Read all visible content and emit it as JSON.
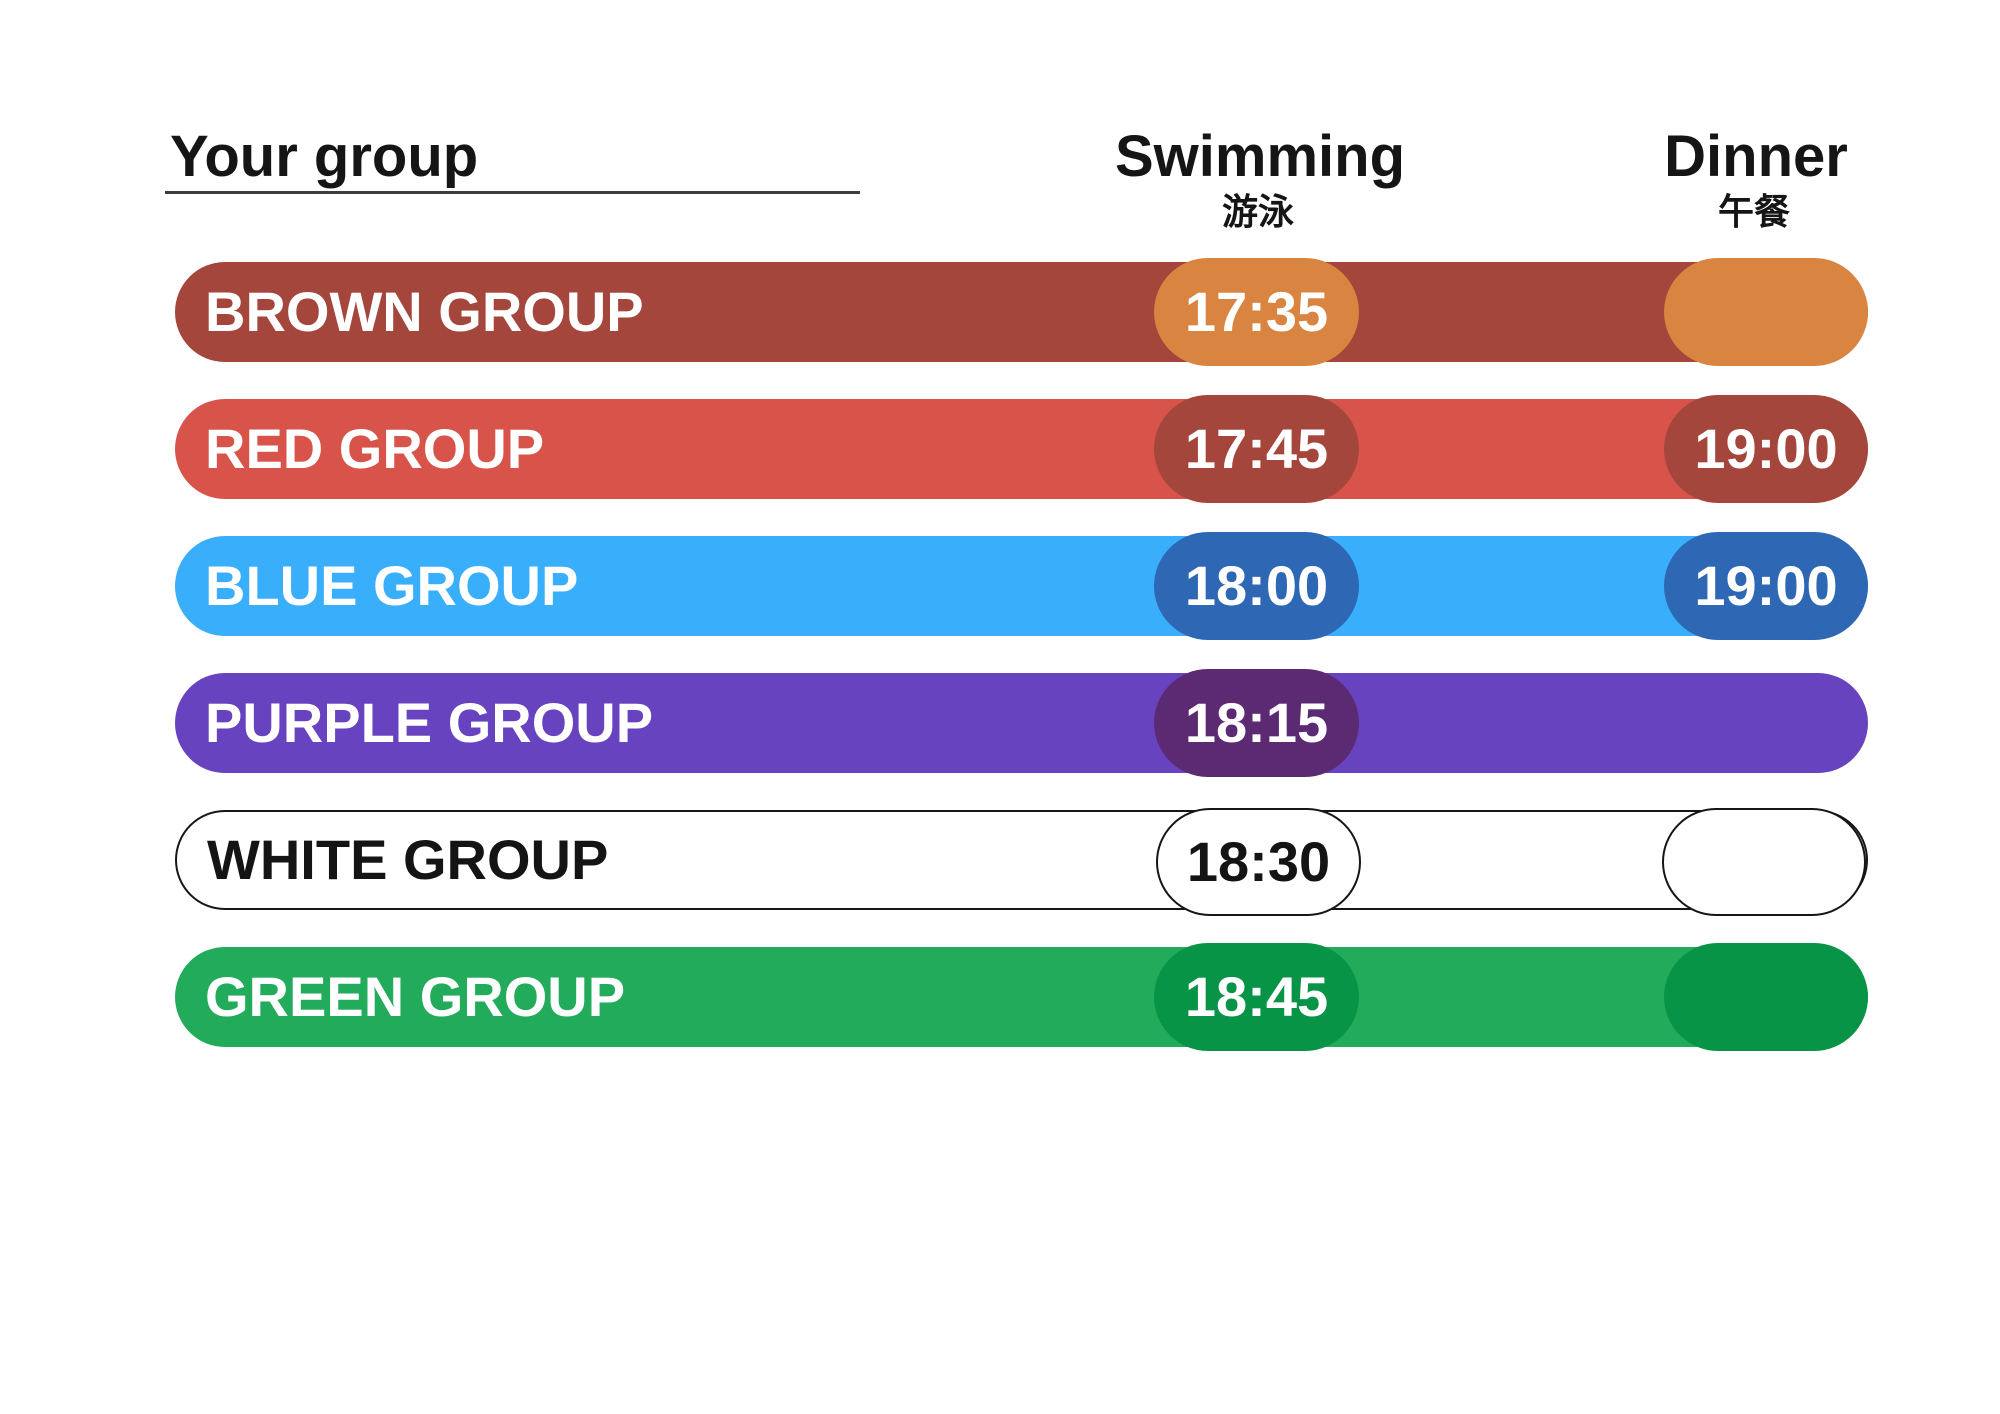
{
  "page": {
    "background": "#FFFFFF",
    "text_color": "#151515"
  },
  "header": {
    "group_column_label": "Your group",
    "swimming_label": "Swimming",
    "swimming_sublabel": "游泳",
    "dinner_label": "Dinner",
    "dinner_sublabel": "午餐"
  },
  "rows": [
    {
      "label": "BROWN GROUP",
      "swimming_time": "17:35",
      "dinner_time": "",
      "bar_color": "#A4463C",
      "pill_color": "#D98441",
      "label_color": "#FFFFFF",
      "show_dinner_pill": true,
      "outlined": false
    },
    {
      "label": "RED GROUP",
      "swimming_time": "17:45",
      "dinner_time": "19:00",
      "bar_color": "#D8544A",
      "pill_color": "#A4463C",
      "label_color": "#FFFFFF",
      "show_dinner_pill": true,
      "outlined": false
    },
    {
      "label": "BLUE GROUP",
      "swimming_time": "18:00",
      "dinner_time": "19:00",
      "bar_color": "#39AEFB",
      "pill_color": "#2E67B3",
      "label_color": "#FFFFFF",
      "show_dinner_pill": true,
      "outlined": false
    },
    {
      "label": "PURPLE GROUP",
      "swimming_time": "18:15",
      "dinner_time": "",
      "bar_color": "#6843C0",
      "pill_color": "#5C2973",
      "label_color": "#FFFFFF",
      "show_dinner_pill": false,
      "outlined": false
    },
    {
      "label": "WHITE GROUP",
      "swimming_time": "18:30",
      "dinner_time": "",
      "bar_color": "#FFFFFF",
      "pill_color": "#FFFFFF",
      "label_color": "#141414",
      "show_dinner_pill": true,
      "outlined": true
    },
    {
      "label": "GREEN GROUP",
      "swimming_time": "18:45",
      "dinner_time": "",
      "bar_color": "#22AB5B",
      "pill_color": "#089447",
      "label_color": "#FFFFFF",
      "show_dinner_pill": true,
      "outlined": false
    }
  ]
}
